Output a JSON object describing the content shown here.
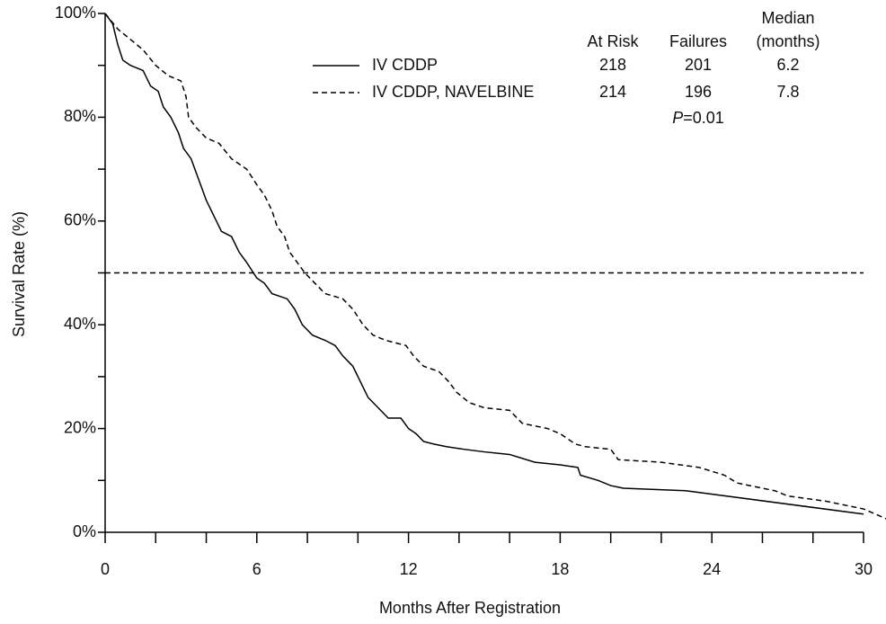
{
  "chart_data": {
    "type": "line",
    "x_label": "Months After Registration",
    "y_label": "Survival Rate (%)",
    "xlim": [
      0,
      30
    ],
    "ylim": [
      0,
      100
    ],
    "xticks": [
      0,
      6,
      12,
      18,
      24,
      30
    ],
    "x_minor_ticks": [
      2,
      4,
      8,
      10,
      14,
      16,
      20,
      22,
      26,
      28
    ],
    "yticks": [
      {
        "value": 0,
        "label": "0%"
      },
      {
        "value": 20,
        "label": "20%"
      },
      {
        "value": 40,
        "label": "40%"
      },
      {
        "value": 60,
        "label": "60%"
      },
      {
        "value": 80,
        "label": "80%"
      },
      {
        "value": 100,
        "label": "100%"
      }
    ],
    "y_minor_ticks": [
      10,
      30,
      50,
      70,
      90
    ],
    "reference_line": 50,
    "legend_columns": [
      [
        "At Risk"
      ],
      [
        "Failures"
      ],
      [
        "Median",
        "(months)"
      ]
    ],
    "p_value": "P=0.01",
    "series": [
      {
        "name": "IV CDDP",
        "style": "solid",
        "color": "#000000",
        "at_risk": 218,
        "failures": 201,
        "median": 6.2,
        "x": [
          0,
          0.3,
          0.5,
          0.7,
          1,
          1.5,
          1.8,
          2.1,
          2.3,
          2.6,
          2.9,
          3.1,
          3.4,
          3.7,
          4,
          4.3,
          4.6,
          5,
          5.3,
          5.6,
          6,
          6.3,
          6.6,
          7.2,
          7.5,
          7.8,
          8.2,
          8.7,
          9.1,
          9.4,
          9.8,
          10.1,
          10.4,
          10.8,
          11.2,
          11.7,
          12,
          12.3,
          12.6,
          13,
          13.5,
          14.2,
          15,
          16,
          17,
          18,
          18.7,
          18.8,
          19.5,
          20,
          20.5,
          23,
          30
        ],
        "values": [
          100,
          98,
          94,
          91,
          90,
          89,
          86,
          85,
          82,
          80,
          77,
          74,
          72,
          68,
          64,
          61,
          58,
          57,
          54,
          52,
          49,
          48,
          46,
          45,
          43,
          40,
          38,
          37,
          36,
          34,
          32,
          29,
          26,
          24,
          22,
          22,
          20,
          19,
          17.5,
          17,
          16.5,
          16,
          15.5,
          15,
          13.5,
          13,
          12.5,
          11,
          10,
          9,
          8.5,
          8,
          3.5
        ]
      },
      {
        "name": "IV CDDP, NAVELBINE",
        "style": "dashed",
        "color": "#000000",
        "at_risk": 214,
        "failures": 196,
        "median": 7.8,
        "x": [
          0,
          0.5,
          1,
          1.5,
          2,
          2.5,
          3,
          3.2,
          3.3,
          3.6,
          4,
          4.5,
          5,
          5.6,
          6,
          6.3,
          6.6,
          6.8,
          7.1,
          7.3,
          7.6,
          7.9,
          8.3,
          8.7,
          9.4,
          9.8,
          10.2,
          10.6,
          11.1,
          11.9,
          12.2,
          12.6,
          13.2,
          13.6,
          13.9,
          14.4,
          15,
          16,
          16.5,
          17.5,
          18,
          18.6,
          19,
          20,
          20.3,
          22,
          23.5,
          24.5,
          25,
          26.5,
          27,
          28.5,
          29.5,
          30,
          30.9
        ],
        "values": [
          100,
          97,
          95,
          93,
          90,
          88,
          87,
          84,
          80,
          78,
          76,
          75,
          72,
          70,
          67,
          65,
          62,
          59,
          57,
          54,
          52,
          50,
          48,
          46,
          45,
          43,
          40,
          38,
          37,
          36,
          34,
          32,
          31,
          29,
          27,
          25,
          24,
          23.5,
          21,
          20,
          19,
          17,
          16.5,
          16,
          14,
          13.5,
          12.5,
          11,
          9.5,
          8,
          7,
          6,
          5,
          4.5,
          2.6
        ]
      }
    ]
  }
}
